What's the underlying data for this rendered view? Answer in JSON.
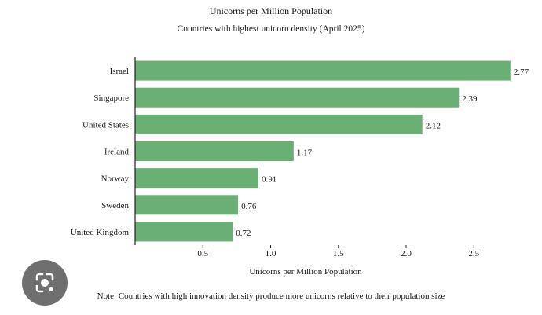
{
  "chart_data": {
    "type": "bar",
    "orientation": "horizontal",
    "title": "Unicorns per Million Population",
    "subtitle": "Countries with highest unicorn density (April 2025)",
    "categories": [
      "Israel",
      "Singapore",
      "United States",
      "Ireland",
      "Norway",
      "Sweden",
      "United Kingdom"
    ],
    "values": [
      2.77,
      2.39,
      2.12,
      1.17,
      0.91,
      0.76,
      0.72
    ],
    "value_labels": [
      "2.77",
      "2.39",
      "2.12",
      "1.17",
      "0.91",
      "0.76",
      "0.72"
    ],
    "xlabel": "Unicorns per Million Population",
    "ylabel": "",
    "xticks": [
      0.5,
      1.0,
      1.5,
      2.0,
      2.5
    ],
    "xtick_labels": [
      "0.5",
      "1.0",
      "1.5",
      "2.0",
      "2.5"
    ],
    "xlim": [
      0,
      2.85
    ],
    "grid": false,
    "bar_color": "#6aaf74",
    "note": "Note: Countries with high innovation density produce more unicorns relative to their population size"
  },
  "overlay": {
    "icon": "lens-icon"
  }
}
